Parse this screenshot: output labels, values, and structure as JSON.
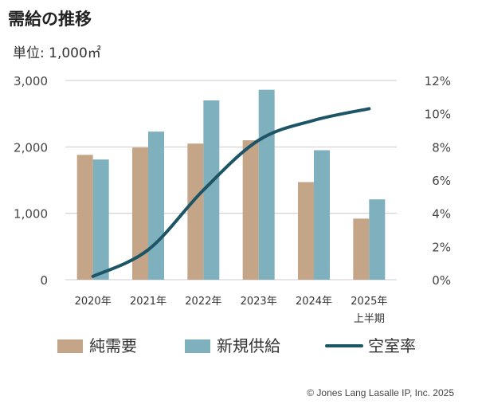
{
  "title": "需給の推移",
  "unit": "単位: 1,000㎡",
  "copyright": "© Jones Lang Lasalle IP, Inc. 2025",
  "colors": {
    "net_demand": "#c4a587",
    "new_supply": "#7fb0bd",
    "vacancy": "#1e5566",
    "gridline": "#cccccc"
  },
  "chart_data": {
    "type": "bar",
    "categories": [
      "2020年",
      "2021年",
      "2022年",
      "2023年",
      "2024年",
      "2025年\n上半期"
    ],
    "series": [
      {
        "name": "純需要",
        "type": "bar",
        "axis": "left",
        "values": [
          1880,
          1990,
          2050,
          2100,
          1470,
          920
        ]
      },
      {
        "name": "新規供給",
        "type": "bar",
        "axis": "left",
        "values": [
          1810,
          2230,
          2700,
          2860,
          1950,
          1210
        ]
      },
      {
        "name": "空室率",
        "type": "line",
        "axis": "right",
        "values": [
          0.2,
          1.8,
          5.4,
          8.4,
          9.6,
          10.3
        ]
      }
    ],
    "y_left": {
      "ticks": [
        "0",
        "1,000",
        "2,000",
        "3,000"
      ],
      "range": [
        0,
        3000
      ]
    },
    "y_right": {
      "ticks": [
        "0%",
        "2%",
        "4%",
        "6%",
        "8%",
        "10%",
        "12%"
      ],
      "range": [
        0,
        12
      ]
    },
    "legend": {
      "position": "bottom",
      "items": [
        {
          "label": "純需要",
          "kind": "bar"
        },
        {
          "label": "新規供給",
          "kind": "bar"
        },
        {
          "label": "空室率",
          "kind": "line"
        }
      ]
    },
    "grid": true
  }
}
